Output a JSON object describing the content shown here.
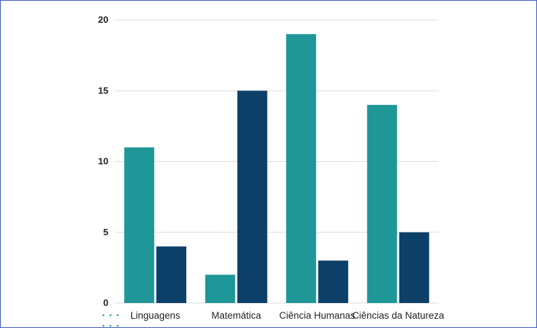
{
  "chart_data": {
    "type": "bar",
    "categories": [
      "Linguagens",
      "Matemática",
      "Ciência Humanas",
      "Ciências da Natureza"
    ],
    "series": [
      {
        "values": [
          11,
          2,
          19,
          14
        ],
        "color": "#1f9698"
      },
      {
        "values": [
          4,
          15,
          3,
          5
        ],
        "color": "#0d4069"
      }
    ],
    "title": "",
    "xlabel": "",
    "ylabel": "",
    "ylim": [
      0,
      20
    ],
    "yticks": [
      0,
      5,
      10,
      15,
      20
    ],
    "grid": true,
    "legend": "none"
  }
}
